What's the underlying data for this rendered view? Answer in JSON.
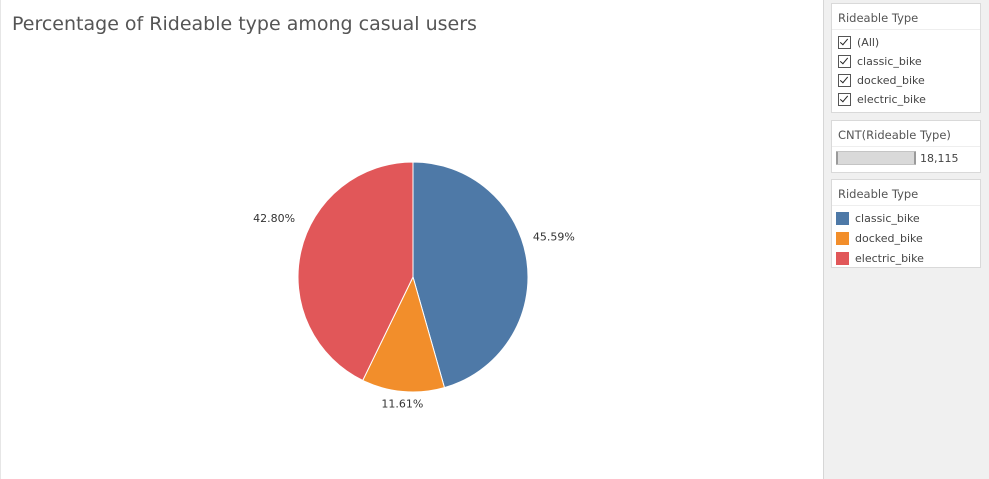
{
  "chart_data": {
    "type": "pie",
    "title": "Percentage of Rideable type among casual users",
    "categories": [
      "classic_bike",
      "docked_bike",
      "electric_bike"
    ],
    "values": [
      45.59,
      11.61,
      42.8
    ],
    "labels": [
      "45.59%",
      "11.61%",
      "42.80%"
    ],
    "colors": [
      "#4e79a7",
      "#f28e2b",
      "#e15759"
    ],
    "legend": "right"
  },
  "filter": {
    "title": "Rideable Type",
    "items": [
      "(All)",
      "classic_bike",
      "docked_bike",
      "electric_bike"
    ]
  },
  "measure": {
    "title": "CNT(Rideable Type)",
    "value": "18,115"
  },
  "legend": {
    "title": "Rideable Type",
    "items": [
      {
        "label": "classic_bike",
        "color": "#4e79a7"
      },
      {
        "label": "docked_bike",
        "color": "#f28e2b"
      },
      {
        "label": "electric_bike",
        "color": "#e15759"
      }
    ]
  }
}
